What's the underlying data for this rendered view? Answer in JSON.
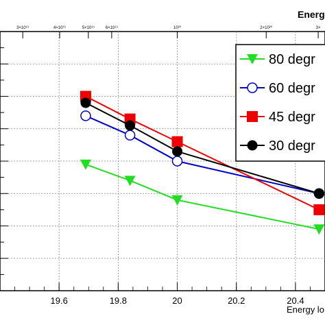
{
  "chart_data": {
    "type": "line",
    "top_axis_title": "Energ",
    "x_axis_title": "Energy lo",
    "x_ticks": [
      19.6,
      19.8,
      20,
      20.2,
      20.4
    ],
    "x_tick_labels": [
      "19.6",
      "19.8",
      "20",
      "20.2",
      "20.4"
    ],
    "x_range": [
      19.4,
      20.5
    ],
    "y_range": [
      0,
      8
    ],
    "top_ticks": [
      {
        "value": 19.477,
        "label": "3×10¹⁹"
      },
      {
        "value": 19.602,
        "label": "4×10¹⁹"
      },
      {
        "value": 19.699,
        "label": "5×10¹⁹"
      },
      {
        "value": 19.778,
        "label": "6×10¹⁹"
      },
      {
        "value": 20.0,
        "label": "10²⁰"
      },
      {
        "value": 20.301,
        "label": "2×10²⁰"
      },
      {
        "value": 20.477,
        "label": "3×"
      }
    ],
    "grid": true,
    "legend_position": "top-right",
    "series": [
      {
        "name": "80 degr",
        "color": "#22dd22",
        "marker": "triangle-down",
        "x": [
          19.69,
          19.84,
          20.0,
          20.48
        ],
        "y": [
          3.9,
          3.4,
          2.8,
          1.9
        ]
      },
      {
        "name": "60 degr",
        "color": "#0000cc",
        "marker": "circle-open",
        "x": [
          19.69,
          19.84,
          20.0,
          20.48
        ],
        "y": [
          5.4,
          4.8,
          4.0,
          3.0
        ]
      },
      {
        "name": "45 degr",
        "color": "#ee0000",
        "marker": "square",
        "x": [
          19.69,
          19.84,
          20.0,
          20.48
        ],
        "y": [
          6.0,
          5.3,
          4.6,
          2.5
        ]
      },
      {
        "name": "30 degr",
        "color": "#000000",
        "marker": "circle",
        "x": [
          19.69,
          19.84,
          20.0,
          20.48
        ],
        "y": [
          5.8,
          5.1,
          4.3,
          3.0
        ]
      }
    ]
  }
}
